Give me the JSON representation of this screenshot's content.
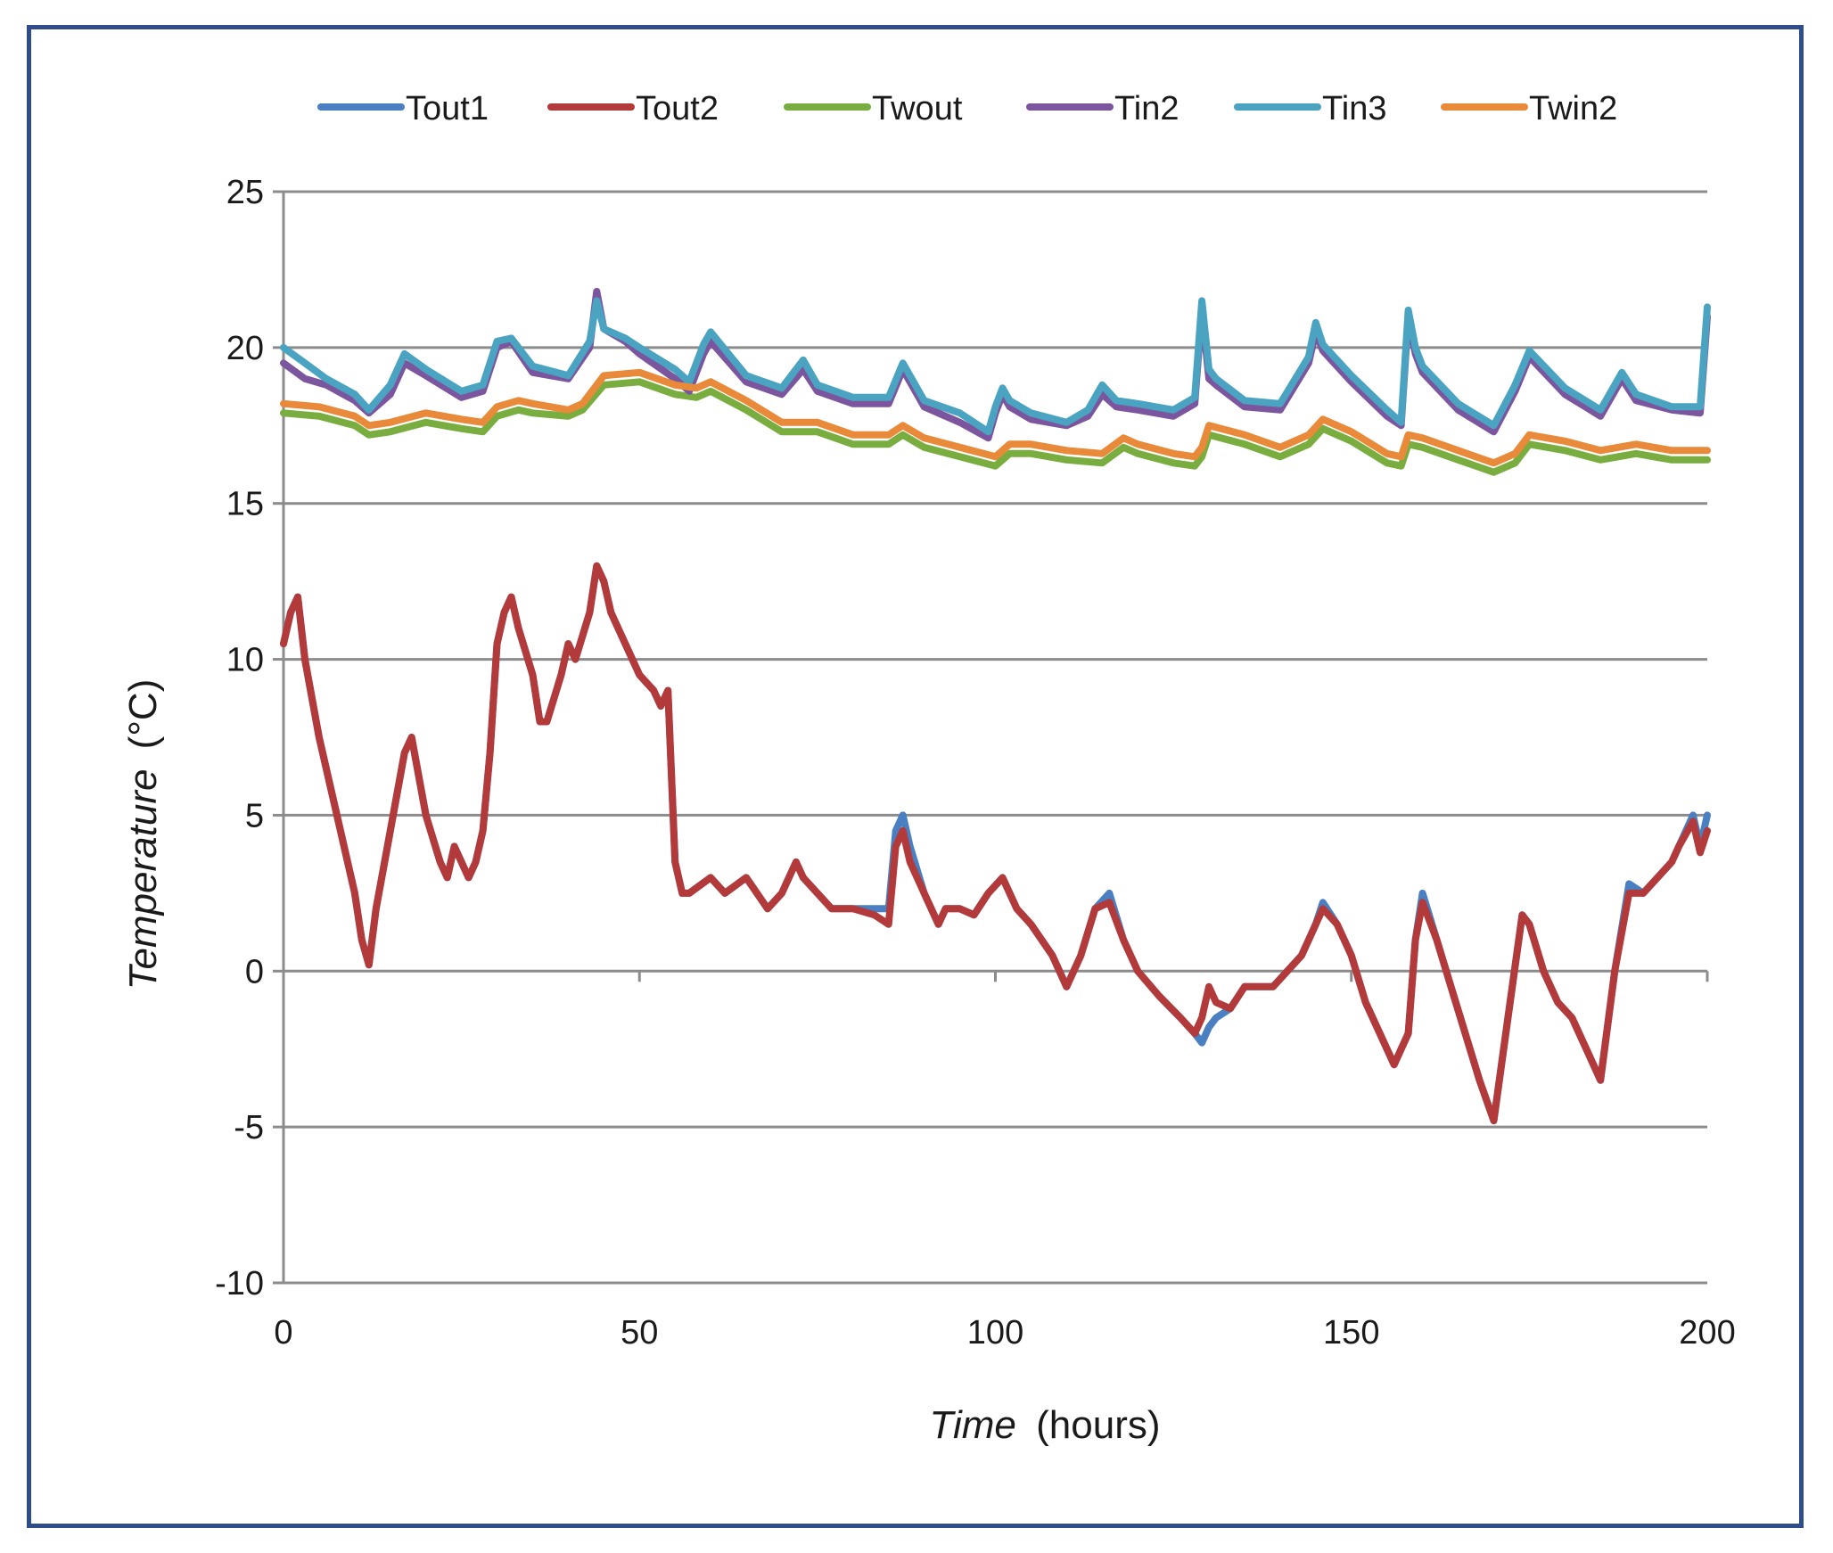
{
  "chart_data": {
    "type": "line",
    "xlabel": "Time",
    "xlabel_unit": "(hours)",
    "ylabel": "Temperature",
    "ylabel_unit": "(°C)",
    "xlim": [
      0,
      200
    ],
    "ylim": [
      -10,
      25
    ],
    "xticks": [
      0,
      50,
      100,
      150,
      200
    ],
    "yticks": [
      -10,
      -5,
      0,
      5,
      10,
      15,
      20,
      25
    ],
    "grid": "horizontal",
    "legend_position": "top",
    "series": [
      {
        "name": "Tout1",
        "color": "#4a7fc1",
        "x": [
          0,
          1,
          2,
          3,
          5,
          7,
          9,
          10,
          11,
          12,
          13,
          15,
          17,
          18,
          20,
          22,
          23,
          24,
          26,
          27,
          28,
          29,
          30,
          31,
          32,
          33,
          35,
          36,
          37,
          39,
          40,
          41,
          43,
          44,
          45,
          46,
          48,
          50,
          52,
          53,
          54,
          55,
          56,
          57,
          60,
          62,
          65,
          68,
          70,
          72,
          73,
          75,
          77,
          80,
          83,
          85,
          86,
          87,
          88,
          90,
          92,
          93,
          95,
          97,
          99,
          101,
          103,
          105,
          108,
          110,
          112,
          114,
          116,
          118,
          120,
          123,
          126,
          128,
          129,
          130,
          131,
          133,
          135,
          137,
          139,
          141,
          143,
          145,
          146,
          148,
          150,
          152,
          154,
          156,
          158,
          159,
          160,
          162,
          164,
          166,
          168,
          170,
          172,
          174,
          175,
          177,
          179,
          181,
          183,
          185,
          187,
          189,
          191,
          193,
          195,
          196,
          198,
          199,
          200
        ],
        "y": [
          10.5,
          11.5,
          12.0,
          10.0,
          7.5,
          5.5,
          3.5,
          2.5,
          1.0,
          0.2,
          2.0,
          4.5,
          7.0,
          7.5,
          5.0,
          3.5,
          3.0,
          4.0,
          3.0,
          3.5,
          4.5,
          7.0,
          10.5,
          11.5,
          12.0,
          11.0,
          9.5,
          8.0,
          8.0,
          9.5,
          10.5,
          10.0,
          11.5,
          13.0,
          12.5,
          11.5,
          10.5,
          9.5,
          9.0,
          8.5,
          9.0,
          3.5,
          2.5,
          2.5,
          3.0,
          2.5,
          3.0,
          2.0,
          2.5,
          3.5,
          3.0,
          2.5,
          2.0,
          2.0,
          2.0,
          2.0,
          4.5,
          5.0,
          4.0,
          2.5,
          1.5,
          2.0,
          2.0,
          1.8,
          2.5,
          3.0,
          2.0,
          1.5,
          0.5,
          -0.5,
          0.5,
          2.0,
          2.5,
          1.0,
          0.0,
          -0.8,
          -1.5,
          -2.0,
          -2.3,
          -1.8,
          -1.5,
          -1.2,
          -0.5,
          -0.5,
          -0.5,
          0.0,
          0.5,
          1.5,
          2.2,
          1.5,
          0.5,
          -1.0,
          -2.0,
          -3.0,
          -2.0,
          1.0,
          2.5,
          1.0,
          -0.5,
          -2.0,
          -3.5,
          -4.8,
          -1.5,
          1.8,
          1.5,
          0.0,
          -1.0,
          -1.5,
          -2.5,
          -3.5,
          0.0,
          2.8,
          2.5,
          3.0,
          3.5,
          4.0,
          5.0,
          4.0,
          5.0
        ]
      },
      {
        "name": "Tout2",
        "color": "#b23a3a",
        "x": [
          0,
          1,
          2,
          3,
          5,
          7,
          9,
          10,
          11,
          12,
          13,
          15,
          17,
          18,
          20,
          22,
          23,
          24,
          26,
          27,
          28,
          29,
          30,
          31,
          32,
          33,
          35,
          36,
          37,
          39,
          40,
          41,
          43,
          44,
          45,
          46,
          48,
          50,
          52,
          53,
          54,
          55,
          56,
          57,
          60,
          62,
          65,
          68,
          70,
          72,
          73,
          75,
          77,
          80,
          83,
          85,
          86,
          87,
          88,
          90,
          92,
          93,
          95,
          97,
          99,
          101,
          103,
          105,
          108,
          110,
          112,
          114,
          116,
          118,
          120,
          123,
          126,
          128,
          129,
          130,
          131,
          133,
          135,
          137,
          139,
          141,
          143,
          145,
          146,
          148,
          150,
          152,
          154,
          156,
          158,
          159,
          160,
          162,
          164,
          166,
          168,
          170,
          172,
          174,
          175,
          177,
          179,
          181,
          183,
          185,
          187,
          189,
          191,
          193,
          195,
          196,
          198,
          199,
          200
        ],
        "y": [
          10.5,
          11.5,
          12.0,
          10.0,
          7.5,
          5.5,
          3.5,
          2.5,
          1.0,
          0.2,
          2.0,
          4.5,
          7.0,
          7.5,
          5.0,
          3.5,
          3.0,
          4.0,
          3.0,
          3.5,
          4.5,
          7.0,
          10.5,
          11.5,
          12.0,
          11.0,
          9.5,
          8.0,
          8.0,
          9.5,
          10.5,
          10.0,
          11.5,
          13.0,
          12.5,
          11.5,
          10.5,
          9.5,
          9.0,
          8.5,
          9.0,
          3.5,
          2.5,
          2.5,
          3.0,
          2.5,
          3.0,
          2.0,
          2.5,
          3.5,
          3.0,
          2.5,
          2.0,
          2.0,
          1.8,
          1.5,
          4.0,
          4.5,
          3.5,
          2.5,
          1.5,
          2.0,
          2.0,
          1.8,
          2.5,
          3.0,
          2.0,
          1.5,
          0.5,
          -0.5,
          0.5,
          2.0,
          2.2,
          1.0,
          0.0,
          -0.8,
          -1.5,
          -2.0,
          -1.5,
          -0.5,
          -1.0,
          -1.2,
          -0.5,
          -0.5,
          -0.5,
          0.0,
          0.5,
          1.5,
          2.0,
          1.5,
          0.5,
          -1.0,
          -2.0,
          -3.0,
          -2.0,
          1.0,
          2.2,
          1.0,
          -0.5,
          -2.0,
          -3.5,
          -4.8,
          -1.5,
          1.8,
          1.5,
          0.0,
          -1.0,
          -1.5,
          -2.5,
          -3.5,
          0.0,
          2.5,
          2.5,
          3.0,
          3.5,
          4.0,
          4.8,
          3.8,
          4.5
        ]
      },
      {
        "name": "Twout",
        "color": "#7aad3f",
        "x": [
          0,
          5,
          10,
          12,
          15,
          20,
          25,
          28,
          30,
          33,
          35,
          40,
          42,
          45,
          50,
          55,
          58,
          60,
          65,
          70,
          75,
          80,
          85,
          87,
          90,
          95,
          100,
          102,
          105,
          110,
          115,
          118,
          120,
          125,
          128,
          129,
          130,
          135,
          140,
          144,
          146,
          150,
          155,
          157,
          158,
          160,
          165,
          170,
          173,
          175,
          180,
          185,
          190,
          195,
          200
        ],
        "y": [
          17.9,
          17.8,
          17.5,
          17.2,
          17.3,
          17.6,
          17.4,
          17.3,
          17.8,
          18.0,
          17.9,
          17.8,
          18.0,
          18.8,
          18.9,
          18.5,
          18.4,
          18.6,
          18.0,
          17.3,
          17.3,
          16.9,
          16.9,
          17.2,
          16.8,
          16.5,
          16.2,
          16.6,
          16.6,
          16.4,
          16.3,
          16.8,
          16.6,
          16.3,
          16.2,
          16.5,
          17.2,
          16.9,
          16.5,
          16.9,
          17.4,
          17.0,
          16.3,
          16.2,
          16.9,
          16.8,
          16.4,
          16.0,
          16.3,
          16.9,
          16.7,
          16.4,
          16.6,
          16.4,
          16.4
        ]
      },
      {
        "name": "Tin2",
        "color": "#7b559e",
        "x": [
          0,
          3,
          6,
          10,
          12,
          15,
          17,
          20,
          25,
          28,
          30,
          32,
          35,
          40,
          43,
          44,
          45,
          48,
          50,
          55,
          57,
          59,
          60,
          65,
          70,
          73,
          75,
          80,
          85,
          87,
          90,
          95,
          99,
          100,
          101,
          102,
          105,
          110,
          113,
          115,
          117,
          120,
          125,
          128,
          129,
          130,
          131,
          135,
          140,
          144,
          145,
          146,
          150,
          155,
          157,
          158,
          159,
          160,
          165,
          170,
          173,
          175,
          180,
          185,
          188,
          190,
          195,
          199,
          200
        ],
        "y": [
          19.5,
          19.0,
          18.8,
          18.3,
          17.9,
          18.5,
          19.5,
          19.1,
          18.4,
          18.6,
          20.0,
          20.2,
          19.2,
          19.0,
          20.0,
          21.8,
          20.6,
          20.2,
          19.8,
          19.0,
          18.6,
          19.8,
          20.2,
          18.9,
          18.5,
          19.3,
          18.6,
          18.2,
          18.2,
          19.3,
          18.1,
          17.6,
          17.1,
          17.9,
          18.5,
          18.1,
          17.7,
          17.5,
          17.8,
          18.5,
          18.1,
          18.0,
          17.8,
          18.2,
          21.2,
          19.0,
          18.8,
          18.1,
          18.0,
          19.5,
          20.5,
          19.9,
          18.9,
          17.8,
          17.5,
          21.0,
          19.8,
          19.2,
          18.0,
          17.3,
          18.6,
          19.7,
          18.5,
          17.8,
          19.0,
          18.3,
          18.0,
          17.9,
          21.0
        ]
      },
      {
        "name": "Tin3",
        "color": "#4aa3c0",
        "x": [
          0,
          3,
          6,
          10,
          12,
          15,
          17,
          20,
          25,
          28,
          30,
          32,
          35,
          40,
          43,
          44,
          45,
          48,
          50,
          55,
          57,
          59,
          60,
          65,
          70,
          73,
          75,
          80,
          85,
          87,
          90,
          95,
          99,
          100,
          101,
          102,
          105,
          110,
          113,
          115,
          117,
          120,
          125,
          128,
          129,
          130,
          131,
          135,
          140,
          144,
          145,
          146,
          150,
          155,
          157,
          158,
          159,
          160,
          165,
          170,
          173,
          175,
          180,
          185,
          188,
          190,
          195,
          199,
          200
        ],
        "y": [
          20.0,
          19.5,
          19.0,
          18.5,
          18.0,
          18.8,
          19.8,
          19.3,
          18.6,
          18.8,
          20.2,
          20.3,
          19.4,
          19.1,
          20.2,
          21.5,
          20.6,
          20.3,
          20.0,
          19.3,
          18.9,
          20.1,
          20.5,
          19.1,
          18.7,
          19.6,
          18.8,
          18.4,
          18.4,
          19.5,
          18.3,
          17.9,
          17.3,
          18.1,
          18.7,
          18.3,
          17.9,
          17.6,
          18.0,
          18.8,
          18.3,
          18.2,
          18.0,
          18.4,
          21.5,
          19.3,
          19.0,
          18.3,
          18.2,
          19.7,
          20.8,
          20.1,
          19.1,
          18.0,
          17.6,
          21.2,
          20.0,
          19.4,
          18.2,
          17.5,
          18.8,
          19.9,
          18.7,
          18.0,
          19.2,
          18.5,
          18.1,
          18.1,
          21.3
        ]
      },
      {
        "name": "Twin2",
        "color": "#e88a3a",
        "x": [
          0,
          5,
          10,
          12,
          15,
          20,
          25,
          28,
          30,
          33,
          35,
          40,
          42,
          45,
          50,
          55,
          58,
          60,
          65,
          70,
          75,
          80,
          85,
          87,
          90,
          95,
          100,
          102,
          105,
          110,
          115,
          118,
          120,
          125,
          128,
          129,
          130,
          135,
          140,
          144,
          146,
          150,
          155,
          157,
          158,
          160,
          165,
          170,
          173,
          175,
          180,
          185,
          190,
          195,
          200
        ],
        "y": [
          18.2,
          18.1,
          17.8,
          17.5,
          17.6,
          17.9,
          17.7,
          17.6,
          18.1,
          18.3,
          18.2,
          18.0,
          18.2,
          19.1,
          19.2,
          18.8,
          18.7,
          18.9,
          18.3,
          17.6,
          17.6,
          17.2,
          17.2,
          17.5,
          17.1,
          16.8,
          16.5,
          16.9,
          16.9,
          16.7,
          16.6,
          17.1,
          16.9,
          16.6,
          16.5,
          16.8,
          17.5,
          17.2,
          16.8,
          17.2,
          17.7,
          17.3,
          16.6,
          16.5,
          17.2,
          17.1,
          16.7,
          16.3,
          16.6,
          17.2,
          17.0,
          16.7,
          16.9,
          16.7,
          16.7
        ]
      }
    ]
  }
}
